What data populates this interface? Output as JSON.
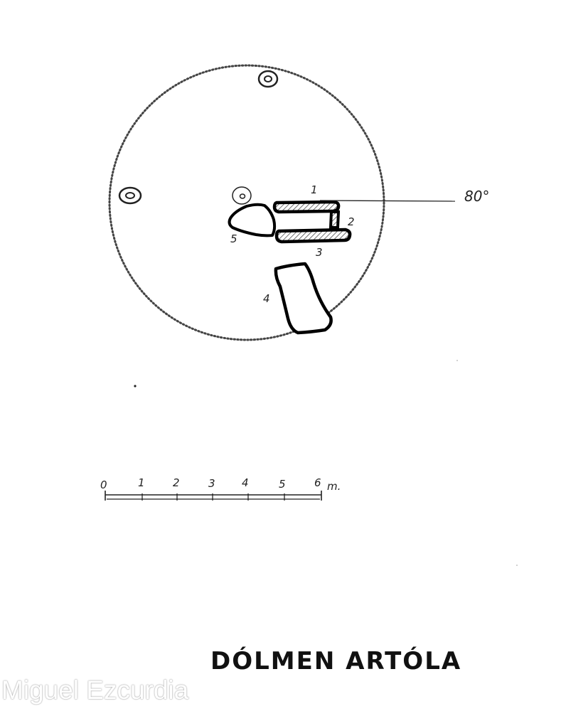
{
  "diagram": {
    "stones": [
      {
        "number": "1"
      },
      {
        "number": "2"
      },
      {
        "number": "3"
      },
      {
        "number": "4"
      },
      {
        "number": "5"
      }
    ],
    "orientation_label": "80°",
    "scale": {
      "ticks": [
        "0",
        "1",
        "2",
        "3",
        "4",
        "5",
        "6"
      ],
      "unit": "m."
    },
    "title": "DÓLMEN ARTÓLA"
  },
  "watermark": "Miguel Ezcurdia"
}
